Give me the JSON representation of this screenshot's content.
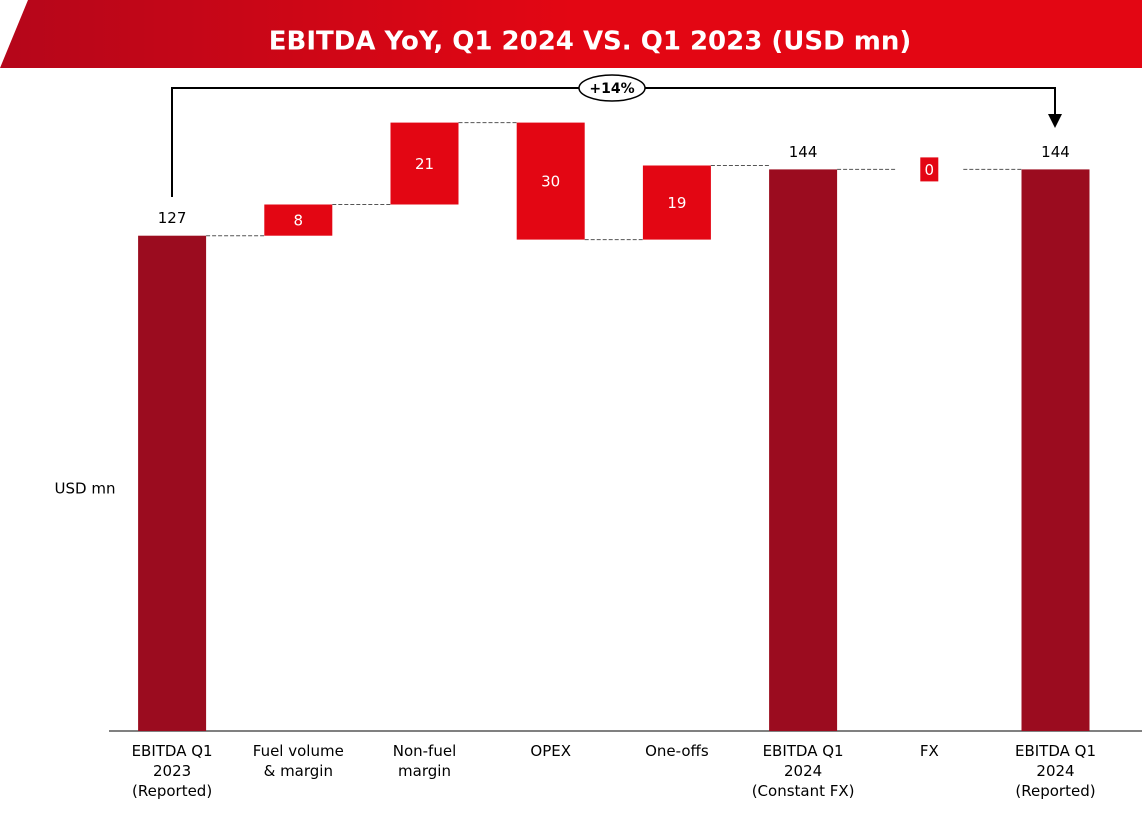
{
  "chart_data": {
    "type": "waterfall",
    "title": "EBITDA YoY, Q1 2024 VS. Q1 2023  (USD mn)",
    "y_label": "USD mn",
    "annotation": "+14%",
    "categories": [
      "EBITDA Q1\n2023\n(Reported)",
      "Fuel volume\n& margin",
      "Non-fuel\nmargin",
      "OPEX",
      "One-offs",
      "EBITDA Q1\n2024\n(Constant FX)",
      "FX",
      "EBITDA Q1\n2024\n(Reported)"
    ],
    "measures": [
      "total",
      "relative",
      "relative",
      "relative",
      "relative",
      "total",
      "relative",
      "total"
    ],
    "values": [
      127,
      8,
      21,
      -30,
      19,
      144,
      0,
      144
    ],
    "value_labels": [
      "127",
      "8",
      "21",
      "30",
      "19",
      "144",
      "0",
      "144"
    ],
    "total_color": "#9b0c1f",
    "change_color": "#e30613",
    "ylim": [
      0,
      160
    ]
  }
}
